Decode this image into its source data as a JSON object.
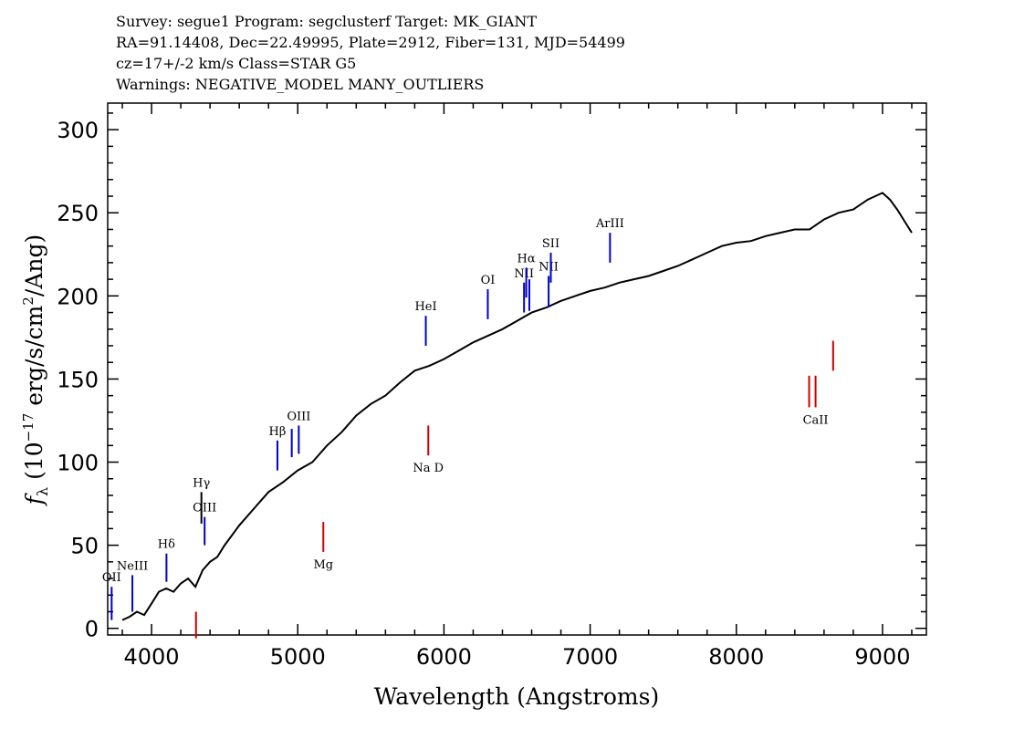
{
  "header": {
    "line1": "Survey: segue1 Program: segclusterf Target: MK_GIANT",
    "line2": "RA=91.14408, Dec=22.49995, Plate=2912, Fiber=131, MJD=54499",
    "line3": "cz=17+/-2 km/s Class=STAR G5",
    "line4": "Warnings: NEGATIVE_MODEL MANY_OUTLIERS"
  },
  "chart_data": {
    "type": "line",
    "title": "",
    "xlabel": "Wavelength (Angstroms)",
    "ylabel": "f_λ (10^-17 erg/s/cm^2/Ang)",
    "xlim": [
      3700,
      9300
    ],
    "ylim": [
      -4,
      316
    ],
    "xticks": [
      4000,
      5000,
      6000,
      7000,
      8000,
      9000
    ],
    "yticks": [
      0,
      50,
      100,
      150,
      200,
      250,
      300
    ],
    "grid": false,
    "series": [
      {
        "color": "#000000",
        "x": [
          3800,
          3850,
          3900,
          3950,
          4000,
          4050,
          4100,
          4150,
          4200,
          4250,
          4300,
          4350,
          4400,
          4450,
          4500,
          4600,
          4700,
          4800,
          4900,
          5000,
          5100,
          5200,
          5300,
          5400,
          5500,
          5600,
          5700,
          5800,
          5900,
          6000,
          6100,
          6200,
          6300,
          6400,
          6500,
          6600,
          6700,
          6800,
          6900,
          7000,
          7100,
          7200,
          7300,
          7400,
          7500,
          7600,
          7700,
          7800,
          7900,
          8000,
          8100,
          8200,
          8300,
          8400,
          8500,
          8600,
          8700,
          8800,
          8900,
          9000,
          9050,
          9100,
          9150,
          9200
        ],
        "y": [
          5,
          7,
          10,
          8,
          15,
          22,
          24,
          22,
          27,
          30,
          25,
          35,
          40,
          43,
          50,
          62,
          72,
          82,
          88,
          95,
          100,
          110,
          118,
          128,
          135,
          140,
          148,
          155,
          158,
          162,
          167,
          172,
          176,
          180,
          185,
          190,
          193,
          197,
          200,
          203,
          205,
          208,
          210,
          212,
          215,
          218,
          222,
          226,
          230,
          232,
          233,
          236,
          238,
          240,
          240,
          246,
          250,
          252,
          258,
          262,
          258,
          252,
          245,
          238
        ]
      }
    ],
    "line_markers": [
      {
        "label": "OII",
        "wavelength": 3727,
        "y0": 5,
        "y1": 25,
        "color": "#0000cc"
      },
      {
        "label": "NeIII",
        "wavelength": 3869,
        "y0": 10,
        "y1": 32,
        "color": "#0000cc"
      },
      {
        "label": "Hδ",
        "wavelength": 4102,
        "y0": 28,
        "y1": 45,
        "color": "#0000cc"
      },
      {
        "label": "Hγ",
        "wavelength": 4341,
        "y0": 63,
        "y1": 82,
        "color": "#000000"
      },
      {
        "label": "OIII",
        "wavelength": 4363,
        "y0": 50,
        "y1": 67,
        "color": "#0000cc"
      },
      {
        "label": "Hβ",
        "wavelength": 4861,
        "y0": 95,
        "y1": 113,
        "color": "#0000cc"
      },
      {
        "label": "",
        "wavelength": 4959,
        "y0": 103,
        "y1": 120,
        "color": "#0000cc"
      },
      {
        "label": "OIII",
        "wavelength": 5007,
        "y0": 105,
        "y1": 122,
        "color": "#0000cc"
      },
      {
        "label": "HeI",
        "wavelength": 5876,
        "y0": 170,
        "y1": 188,
        "color": "#0000cc"
      },
      {
        "label": "OI",
        "wavelength": 6300,
        "y0": 186,
        "y1": 204,
        "color": "#0000cc"
      },
      {
        "label": "NII",
        "wavelength": 6548,
        "y0": 190,
        "y1": 208,
        "color": "#0000cc"
      },
      {
        "label": "Hα",
        "wavelength": 6563,
        "y0": 199,
        "y1": 217,
        "color": "#0000cc"
      },
      {
        "label": "",
        "wavelength": 6584,
        "y0": 191,
        "y1": 210,
        "color": "#0000cc"
      },
      {
        "label": "NII",
        "wavelength": 6716,
        "y0": 193,
        "y1": 212,
        "color": "#0000cc"
      },
      {
        "label": "SII",
        "wavelength": 6731,
        "y0": 208,
        "y1": 226,
        "color": "#0000cc"
      },
      {
        "label": "ArIII",
        "wavelength": 7136,
        "y0": 220,
        "y1": 238,
        "color": "#0000cc"
      },
      {
        "label": "",
        "wavelength": 4304,
        "y0": -6,
        "y1": 10,
        "color": "#cc0000"
      },
      {
        "label": "Mg",
        "wavelength": 5175,
        "y0": 46,
        "y1": 64,
        "color": "#cc0000"
      },
      {
        "label": "Na D",
        "wavelength": 5893,
        "y0": 104,
        "y1": 122,
        "color": "#cc0000"
      },
      {
        "label": "",
        "wavelength": 8498,
        "y0": 133,
        "y1": 152,
        "color": "#cc0000"
      },
      {
        "label": "CaII",
        "wavelength": 8542,
        "y0": 133,
        "y1": 152,
        "color": "#cc0000"
      },
      {
        "label": "",
        "wavelength": 8662,
        "y0": 155,
        "y1": 173,
        "color": "#cc0000"
      }
    ]
  }
}
